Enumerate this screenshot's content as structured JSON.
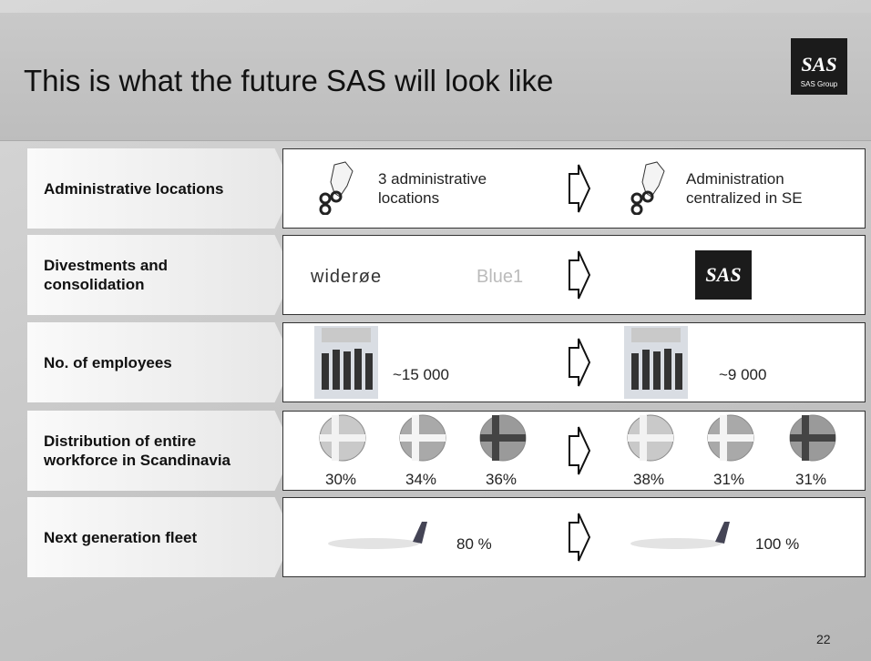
{
  "header": {
    "title": "This is what the future SAS will look like",
    "logo": "SAS",
    "logo_caption": "SAS Group"
  },
  "rows": [
    {
      "label": "Administrative locations",
      "before": "3 administrative locations",
      "after": "Administration centralized in SE"
    },
    {
      "label": "Divestments and consolidation",
      "before": [
        "widerøe",
        "Blue1"
      ],
      "after": "SAS"
    },
    {
      "label": "No. of employees",
      "before": "~15 000",
      "after": "~9 000"
    },
    {
      "label": "Distribution of entire workforce in Scandinavia",
      "before": [
        "30%",
        "34%",
        "36%"
      ],
      "after": [
        "38%",
        "31%",
        "31%"
      ]
    },
    {
      "label": "Next generation fleet",
      "before": "80 %",
      "after": "100 %"
    }
  ],
  "page_number": "22"
}
